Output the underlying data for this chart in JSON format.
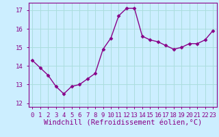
{
  "x": [
    0,
    1,
    2,
    3,
    4,
    5,
    6,
    7,
    8,
    9,
    10,
    11,
    12,
    13,
    14,
    15,
    16,
    17,
    18,
    19,
    20,
    21,
    22,
    23
  ],
  "y": [
    14.3,
    13.9,
    13.5,
    12.9,
    12.5,
    12.9,
    13.0,
    13.3,
    13.6,
    14.9,
    15.5,
    16.7,
    17.1,
    17.1,
    15.6,
    15.4,
    15.3,
    15.1,
    14.9,
    15.0,
    15.2,
    15.2,
    15.4,
    15.9
  ],
  "line_color": "#880088",
  "marker": "D",
  "marker_size": 2.5,
  "line_width": 1.0,
  "bg_color": "#cceeff",
  "grid_color": "#aadddd",
  "xlabel": "Windchill (Refroidissement éolien,°C)",
  "xlim": [
    -0.5,
    23.5
  ],
  "ylim": [
    11.8,
    17.4
  ],
  "yticks": [
    12,
    13,
    14,
    15,
    16,
    17
  ],
  "tick_fontsize": 6.5,
  "xlabel_fontsize": 7.5
}
